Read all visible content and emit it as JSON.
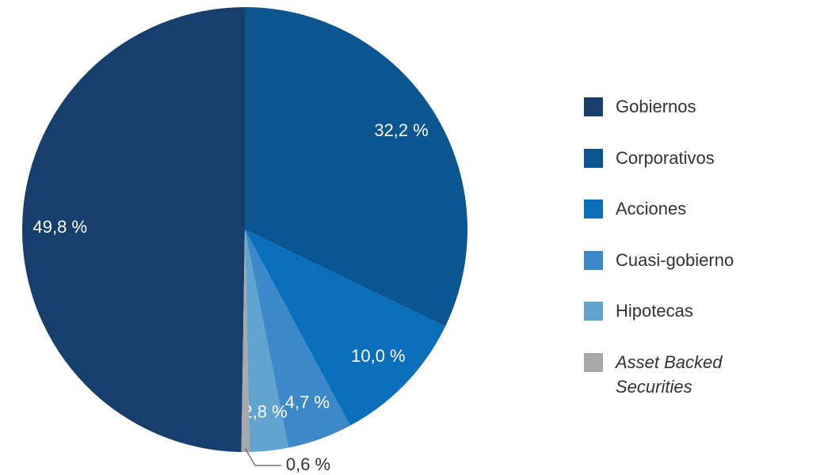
{
  "chart_data": {
    "type": "pie",
    "categories": [
      "Gobiernos",
      "Corporativos",
      "Acciones",
      "Cuasi-gobierno",
      "Hipotecas",
      "Asset Backed Securities"
    ],
    "values": [
      49.8,
      32.2,
      10.0,
      4.7,
      2.8,
      0.6
    ],
    "value_labels": [
      "49,8 %",
      "32,2 %",
      "10,0 %",
      "4,7 %",
      "2,8 %",
      "0,6 %"
    ],
    "colors": [
      "#173f6e",
      "#0b5590",
      "#0a6fba",
      "#3d88c8",
      "#62a4d0",
      "#a8a8a8"
    ],
    "legend": "right"
  }
}
